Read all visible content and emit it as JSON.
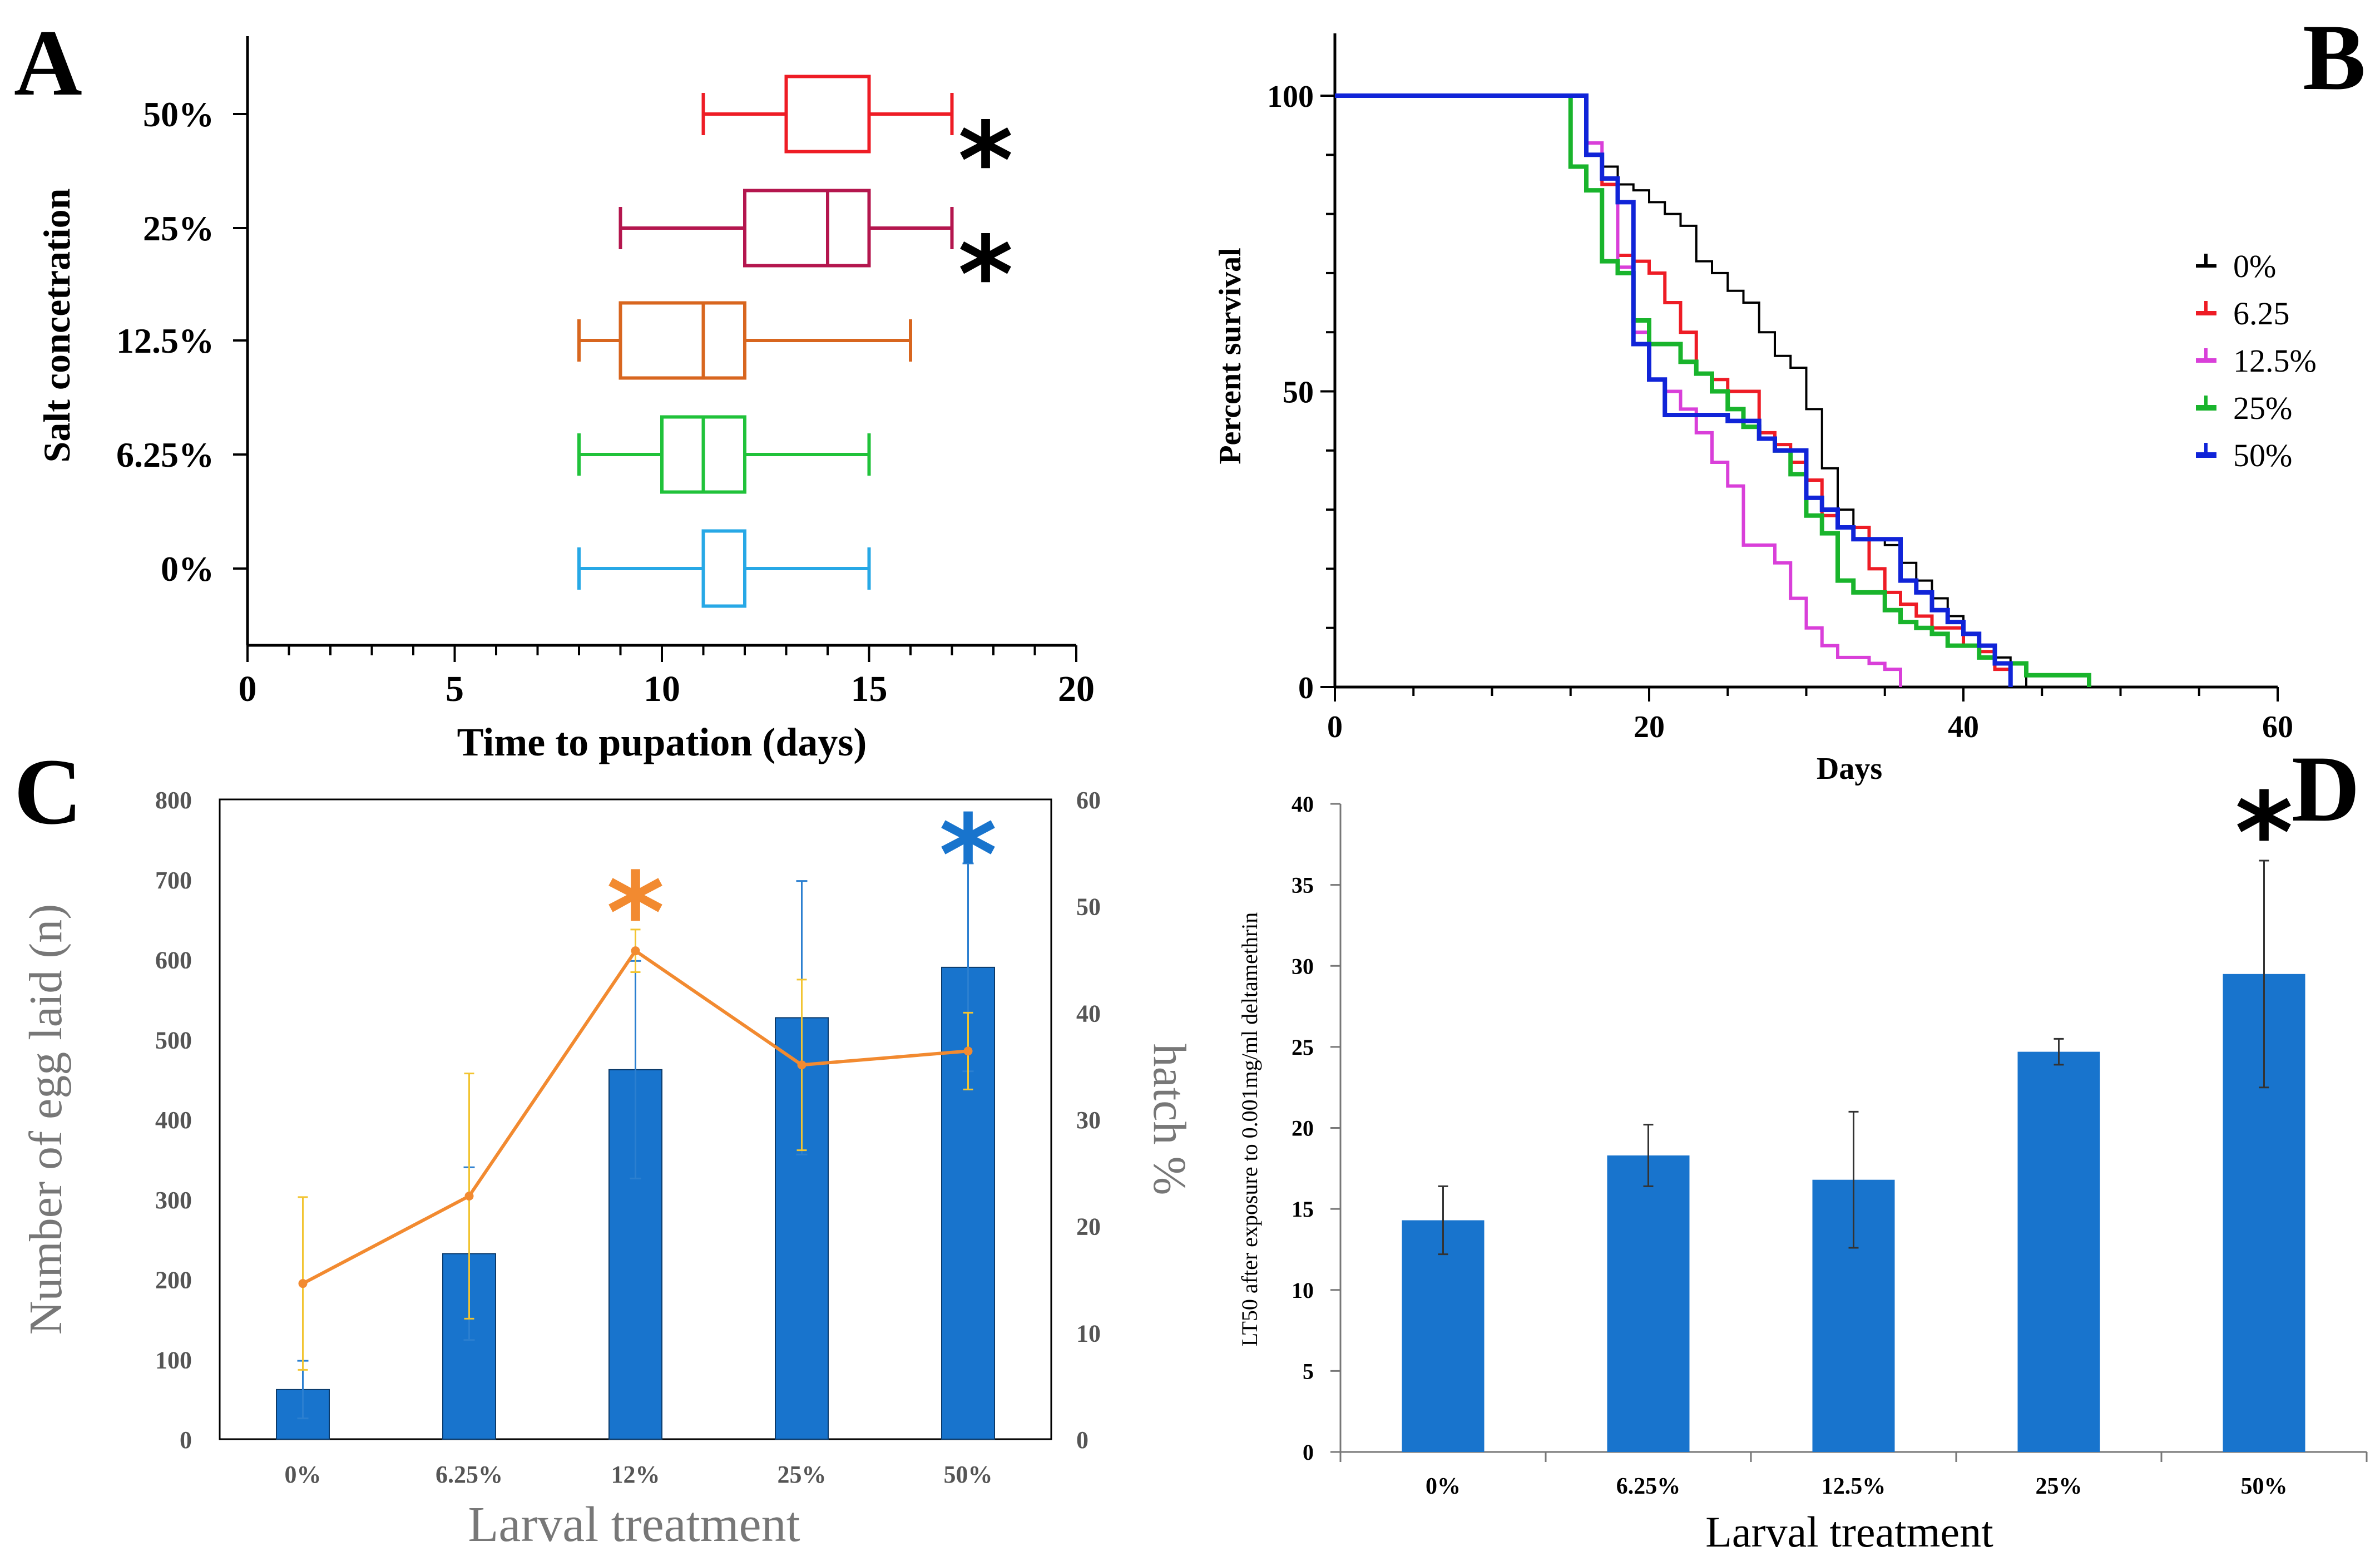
{
  "panels": {
    "A": "A",
    "B": "B",
    "C": "C",
    "D": "D"
  },
  "chart_data": [
    {
      "panel": "A",
      "type": "boxplot",
      "orientation": "horizontal",
      "xlabel": "Time to pupation (days)",
      "ylabel": "Salt concetration",
      "xlim": [
        0,
        20
      ],
      "xticks": [
        "0",
        "5",
        "10",
        "15",
        "20"
      ],
      "categories": [
        "50%",
        "25%",
        "12.5%",
        "6.25%",
        "0%"
      ],
      "boxes": [
        {
          "label": "50%",
          "min": 11,
          "q1": 13,
          "median": 15,
          "q3": 15,
          "max": 17,
          "color": "#ee1c25",
          "significant": true
        },
        {
          "label": "25%",
          "min": 9,
          "q1": 12,
          "median": 14,
          "q3": 15,
          "max": 17,
          "color": "#b4164e",
          "significant": true
        },
        {
          "label": "12.5%",
          "min": 8,
          "q1": 9,
          "median": 11,
          "q3": 12,
          "max": 16,
          "color": "#d8661f",
          "significant": false
        },
        {
          "label": "6.25%",
          "min": 8,
          "q1": 10,
          "median": 11,
          "q3": 12,
          "max": 15,
          "color": "#20c23a",
          "significant": false
        },
        {
          "label": "0%",
          "min": 8,
          "q1": 11,
          "median": 11,
          "q3": 12,
          "max": 15,
          "color": "#27a8e6",
          "significant": false
        }
      ],
      "annotation": "*"
    },
    {
      "panel": "B",
      "type": "line",
      "subtype": "survival-step",
      "xlabel": "Days",
      "ylabel": "Percent survival",
      "xlim": [
        0,
        60
      ],
      "ylim": [
        0,
        100
      ],
      "xticks": [
        "0",
        "20",
        "40",
        "60"
      ],
      "yticks": [
        "0",
        "50",
        "100"
      ],
      "legend_position": "right",
      "series": [
        {
          "name": "0%",
          "color": "#000000",
          "width": 4,
          "points": [
            [
              0,
              100
            ],
            [
              16,
              100
            ],
            [
              16,
              92
            ],
            [
              17,
              88
            ],
            [
              18,
              85
            ],
            [
              19,
              84
            ],
            [
              20,
              82
            ],
            [
              21,
              80
            ],
            [
              22,
              78
            ],
            [
              23,
              72
            ],
            [
              24,
              70
            ],
            [
              25,
              67
            ],
            [
              26,
              65
            ],
            [
              27,
              60
            ],
            [
              28,
              56
            ],
            [
              29,
              54
            ],
            [
              30,
              47
            ],
            [
              31,
              37
            ],
            [
              32,
              30
            ],
            [
              33,
              25
            ],
            [
              35,
              24
            ],
            [
              36,
              21
            ],
            [
              37,
              18
            ],
            [
              38,
              15
            ],
            [
              39,
              12
            ],
            [
              40,
              9
            ],
            [
              41,
              7
            ],
            [
              42,
              5
            ],
            [
              43,
              4
            ],
            [
              44,
              2
            ],
            [
              44,
              0
            ]
          ]
        },
        {
          "name": "6.25",
          "color": "#ee1c25",
          "width": 6,
          "points": [
            [
              0,
              100
            ],
            [
              16,
              100
            ],
            [
              16,
              90
            ],
            [
              17,
              85
            ],
            [
              18,
              73
            ],
            [
              19,
              72
            ],
            [
              20,
              70
            ],
            [
              21,
              65
            ],
            [
              22,
              60
            ],
            [
              23,
              53
            ],
            [
              24,
              52
            ],
            [
              25,
              50
            ],
            [
              27,
              43
            ],
            [
              28,
              41
            ],
            [
              29,
              38
            ],
            [
              30,
              35
            ],
            [
              31,
              29
            ],
            [
              32,
              27
            ],
            [
              34,
              20
            ],
            [
              35,
              16
            ],
            [
              36,
              14
            ],
            [
              37,
              12
            ],
            [
              38,
              10
            ],
            [
              40,
              7
            ],
            [
              41,
              6
            ],
            [
              42,
              3
            ],
            [
              43,
              0
            ]
          ]
        },
        {
          "name": "12.5%",
          "color": "#d93fd9",
          "width": 6,
          "points": [
            [
              0,
              100
            ],
            [
              16,
              100
            ],
            [
              16,
              92
            ],
            [
              17,
              86
            ],
            [
              18,
              71
            ],
            [
              19,
              60
            ],
            [
              20,
              52
            ],
            [
              21,
              50
            ],
            [
              22,
              47
            ],
            [
              23,
              43
            ],
            [
              24,
              38
            ],
            [
              25,
              34
            ],
            [
              26,
              24
            ],
            [
              28,
              21
            ],
            [
              29,
              15
            ],
            [
              30,
              10
            ],
            [
              31,
              7
            ],
            [
              32,
              5
            ],
            [
              34,
              4
            ],
            [
              35,
              3
            ],
            [
              36,
              2
            ],
            [
              36,
              0
            ]
          ]
        },
        {
          "name": "25%",
          "color": "#19b42c",
          "width": 8,
          "points": [
            [
              0,
              100
            ],
            [
              15,
              100
            ],
            [
              15,
              88
            ],
            [
              16,
              84
            ],
            [
              17,
              72
            ],
            [
              18,
              70
            ],
            [
              19,
              62
            ],
            [
              20,
              58
            ],
            [
              22,
              55
            ],
            [
              23,
              53
            ],
            [
              24,
              50
            ],
            [
              25,
              47
            ],
            [
              26,
              44
            ],
            [
              27,
              42
            ],
            [
              28,
              40
            ],
            [
              29,
              36
            ],
            [
              30,
              29
            ],
            [
              31,
              26
            ],
            [
              32,
              18
            ],
            [
              33,
              16
            ],
            [
              35,
              13
            ],
            [
              36,
              11
            ],
            [
              37,
              10
            ],
            [
              38,
              9
            ],
            [
              39,
              7
            ],
            [
              41,
              5
            ],
            [
              42,
              4
            ],
            [
              44,
              2
            ],
            [
              48,
              0
            ]
          ]
        },
        {
          "name": "50%",
          "color": "#1024d8",
          "width": 8,
          "points": [
            [
              0,
              100
            ],
            [
              16,
              100
            ],
            [
              16,
              90
            ],
            [
              17,
              86
            ],
            [
              18,
              82
            ],
            [
              19,
              58
            ],
            [
              20,
              52
            ],
            [
              21,
              46
            ],
            [
              24,
              46
            ],
            [
              25,
              45
            ],
            [
              27,
              42
            ],
            [
              28,
              40
            ],
            [
              29,
              40
            ],
            [
              30,
              32
            ],
            [
              31,
              30
            ],
            [
              32,
              27
            ],
            [
              33,
              25
            ],
            [
              36,
              18
            ],
            [
              37,
              16
            ],
            [
              38,
              13
            ],
            [
              39,
              11
            ],
            [
              40,
              9
            ],
            [
              41,
              7
            ],
            [
              42,
              4
            ],
            [
              43,
              0
            ]
          ]
        }
      ]
    },
    {
      "panel": "C",
      "type": "bar",
      "xlabel": "Larval treatment",
      "ylabel": "Number of egg laid (n)",
      "y2label": "hatch %",
      "ylim": [
        0,
        800
      ],
      "y2lim": [
        0,
        60
      ],
      "yticks": [
        "0",
        "100",
        "200",
        "300",
        "400",
        "500",
        "600",
        "700",
        "800"
      ],
      "y2ticks": [
        "0",
        "10",
        "20",
        "30",
        "40",
        "50",
        "60"
      ],
      "categories": [
        "0%",
        "6.25%",
        "12%",
        "25%",
        "50%"
      ],
      "series": [
        {
          "name": "Number of egg laid",
          "kind": "bar",
          "axis": "left",
          "color": "#1874cd",
          "values": [
            62,
            232,
            462,
            527,
            590
          ],
          "errors": [
            36,
            108,
            136,
            171,
            130
          ]
        },
        {
          "name": "hatch %",
          "kind": "line",
          "axis": "right",
          "color": "#f28a30",
          "errColor": "#f2c431",
          "values": [
            14.6,
            22.8,
            45.8,
            35.1,
            36.4
          ],
          "errors": [
            8.1,
            11.5,
            2.0,
            8.0,
            3.6
          ]
        }
      ],
      "annotations": [
        {
          "text": "*",
          "category": "12%",
          "color": "#f28a30"
        },
        {
          "text": "*",
          "category": "50%",
          "color": "#1874cd"
        }
      ]
    },
    {
      "panel": "D",
      "type": "bar",
      "xlabel": "Larval treatment",
      "ylabel": "LT50 after exposure to 0.001mg/ml deltamethrin",
      "ylim": [
        0,
        40
      ],
      "yticks": [
        "0",
        "5",
        "10",
        "15",
        "20",
        "25",
        "30",
        "35",
        "40"
      ],
      "categories": [
        "0%",
        "6.25%",
        "12.5%",
        "25%",
        "50%"
      ],
      "series": [
        {
          "name": "LT50",
          "color": "#1874cd",
          "values": [
            14.3,
            18.3,
            16.8,
            24.7,
            29.5
          ],
          "errors": [
            2.1,
            1.9,
            4.2,
            0.8,
            7.0
          ]
        }
      ],
      "annotations": [
        {
          "text": "*",
          "category": "50%",
          "color": "#000000"
        }
      ]
    }
  ]
}
